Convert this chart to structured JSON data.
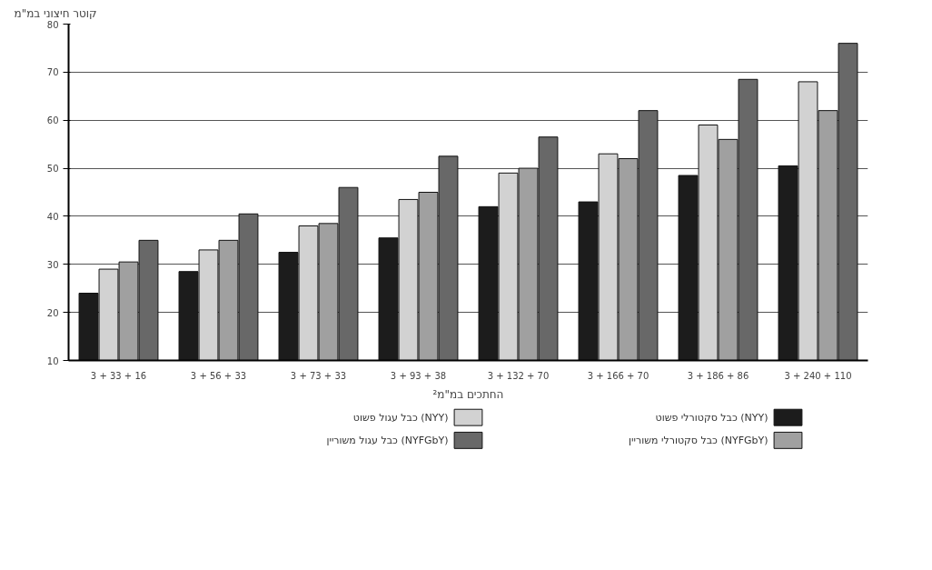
{
  "chart_data": {
    "type": "bar",
    "ylabel": "קוטר חיצוני במ\"מ",
    "xlabel": "החתכים במ\"מ²",
    "categories": [
      "3 + 33 + 16",
      "3 + 56 + 33",
      "3 + 73 + 33",
      "3 + 93 + 38",
      "3 + 132 + 70",
      "3 + 166 + 70",
      "3 + 186 + 86",
      "3 + 240 + 110"
    ],
    "series": [
      {
        "name": "כבל סקטורלי פשוט (NYY)",
        "color": "#1c1c1c",
        "values": [
          24,
          28.5,
          32.5,
          35.5,
          42,
          43,
          48.5,
          50.5
        ]
      },
      {
        "name": "כבל עגול פשוט (NYY)",
        "color": "#d2d2d2",
        "values": [
          29,
          33,
          38,
          43.5,
          49,
          53,
          59,
          68
        ]
      },
      {
        "name": "כבל סקטורלי משוריין (NYFGbY)",
        "color": "#a0a0a0",
        "values": [
          30.5,
          35,
          38.5,
          45,
          50,
          52,
          56,
          62
        ]
      },
      {
        "name": "כבל עגול משוריין (NYFGbY)",
        "color": "#686868",
        "values": [
          35,
          40.5,
          46,
          52.5,
          56.5,
          62,
          68.5,
          76
        ]
      }
    ],
    "ylim": [
      10,
      80
    ],
    "yticks": [
      10,
      20,
      30,
      40,
      50,
      60,
      70,
      80
    ],
    "grid": "y",
    "legend": "bottom"
  }
}
